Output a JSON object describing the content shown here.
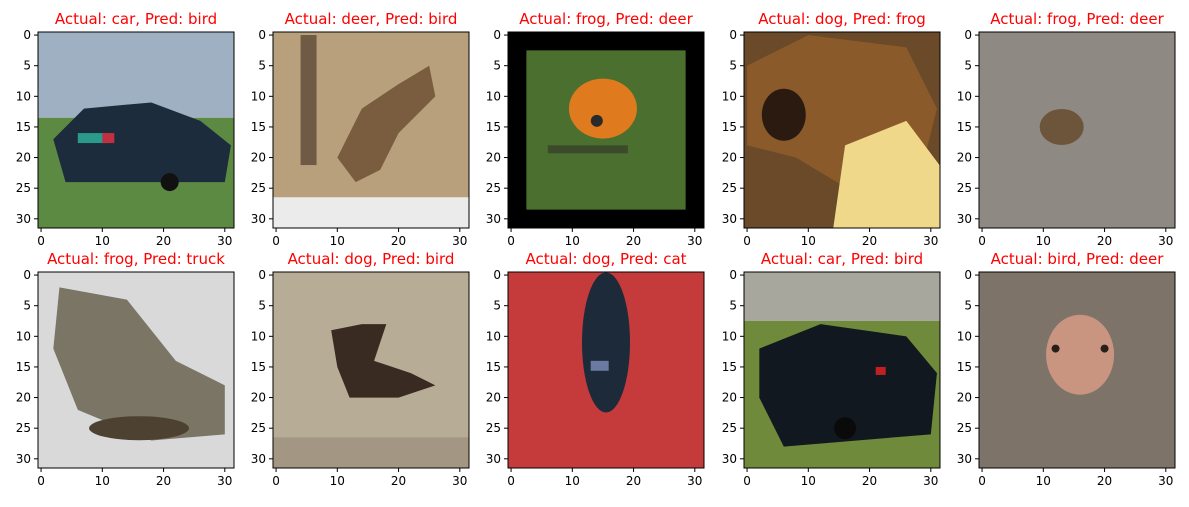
{
  "figure": {
    "rows": 2,
    "cols": 5,
    "title_color": "#ff0000"
  },
  "chart_data": [
    {
      "type": "image",
      "title": "Actual: car, Pred: bird",
      "actual": "car",
      "predicted": "bird",
      "xlim": [
        -0.5,
        31.5
      ],
      "ylim": [
        31.5,
        -0.5
      ],
      "xticks": [
        0,
        10,
        20,
        30
      ],
      "yticks": [
        0,
        5,
        10,
        15,
        20,
        25,
        30
      ],
      "content": "car-icon"
    },
    {
      "type": "image",
      "title": "Actual: deer, Pred: bird",
      "actual": "deer",
      "predicted": "bird",
      "xlim": [
        -0.5,
        31.5
      ],
      "ylim": [
        31.5,
        -0.5
      ],
      "xticks": [
        0,
        10,
        20,
        30
      ],
      "yticks": [
        0,
        5,
        10,
        15,
        20,
        25,
        30
      ],
      "content": "deer-icon"
    },
    {
      "type": "image",
      "title": "Actual: frog, Pred: deer",
      "actual": "frog",
      "predicted": "deer",
      "xlim": [
        -0.5,
        31.5
      ],
      "ylim": [
        31.5,
        -0.5
      ],
      "xticks": [
        0,
        10,
        20,
        30
      ],
      "yticks": [
        0,
        5,
        10,
        15,
        20,
        25,
        30
      ],
      "content": "frog-icon"
    },
    {
      "type": "image",
      "title": "Actual: dog, Pred: frog",
      "actual": "dog",
      "predicted": "frog",
      "xlim": [
        -0.5,
        31.5
      ],
      "ylim": [
        31.5,
        -0.5
      ],
      "xticks": [
        0,
        10,
        20,
        30
      ],
      "yticks": [
        0,
        5,
        10,
        15,
        20,
        25,
        30
      ],
      "content": "dog-icon"
    },
    {
      "type": "image",
      "title": "Actual: frog, Pred: deer",
      "actual": "frog",
      "predicted": "deer",
      "xlim": [
        -0.5,
        31.5
      ],
      "ylim": [
        31.5,
        -0.5
      ],
      "xticks": [
        0,
        10,
        20,
        30
      ],
      "yticks": [
        0,
        5,
        10,
        15,
        20,
        25,
        30
      ],
      "content": "frog-icon"
    },
    {
      "type": "image",
      "title": "Actual: frog, Pred: truck",
      "actual": "frog",
      "predicted": "truck",
      "xlim": [
        -0.5,
        31.5
      ],
      "ylim": [
        31.5,
        -0.5
      ],
      "xticks": [
        0,
        10,
        20,
        30
      ],
      "yticks": [
        0,
        5,
        10,
        15,
        20,
        25,
        30
      ],
      "content": "frog-icon"
    },
    {
      "type": "image",
      "title": "Actual: dog, Pred: bird",
      "actual": "dog",
      "predicted": "bird",
      "xlim": [
        -0.5,
        31.5
      ],
      "ylim": [
        31.5,
        -0.5
      ],
      "xticks": [
        0,
        10,
        20,
        30
      ],
      "yticks": [
        0,
        5,
        10,
        15,
        20,
        25,
        30
      ],
      "content": "dog-icon"
    },
    {
      "type": "image",
      "title": "Actual: dog, Pred: cat",
      "actual": "dog",
      "predicted": "cat",
      "xlim": [
        -0.5,
        31.5
      ],
      "ylim": [
        31.5,
        -0.5
      ],
      "xticks": [
        0,
        10,
        20,
        30
      ],
      "yticks": [
        0,
        5,
        10,
        15,
        20,
        25,
        30
      ],
      "content": "dog-icon"
    },
    {
      "type": "image",
      "title": "Actual: car, Pred: bird",
      "actual": "car",
      "predicted": "bird",
      "xlim": [
        -0.5,
        31.5
      ],
      "ylim": [
        31.5,
        -0.5
      ],
      "xticks": [
        0,
        10,
        20,
        30
      ],
      "yticks": [
        0,
        5,
        10,
        15,
        20,
        25,
        30
      ],
      "content": "car-icon"
    },
    {
      "type": "image",
      "title": "Actual: bird, Pred: deer",
      "actual": "bird",
      "predicted": "deer",
      "xlim": [
        -0.5,
        31.5
      ],
      "ylim": [
        31.5,
        -0.5
      ],
      "xticks": [
        0,
        10,
        20,
        30
      ],
      "yticks": [
        0,
        5,
        10,
        15,
        20,
        25,
        30
      ],
      "content": "bird-icon"
    }
  ]
}
